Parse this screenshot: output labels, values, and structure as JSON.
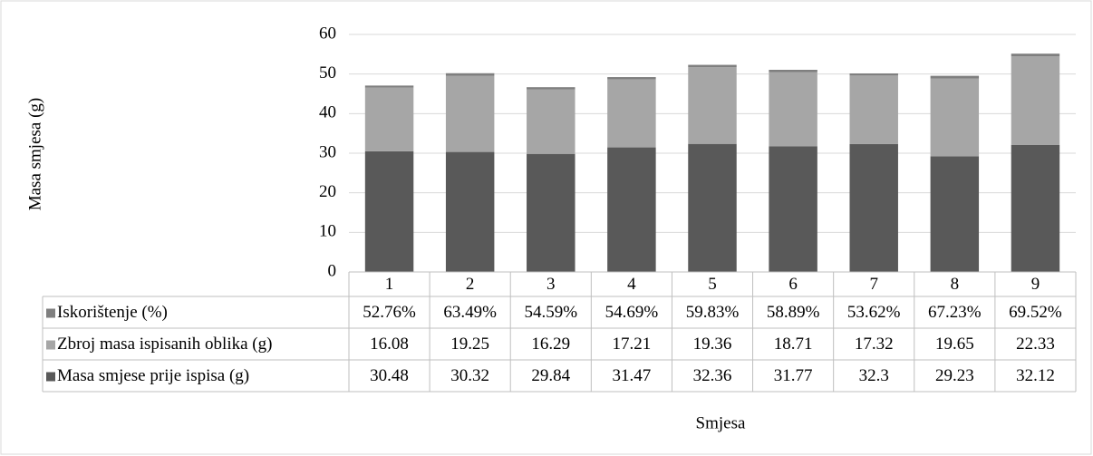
{
  "chart_data": {
    "type": "bar",
    "stacked": true,
    "y_label": "Masa smjesa (g)",
    "x_label": "Smjesa",
    "categories": [
      "1",
      "2",
      "3",
      "4",
      "5",
      "6",
      "7",
      "8",
      "9"
    ],
    "series": [
      {
        "name": "Masa smjese prije ispisa (g)",
        "color": "#595959",
        "values": [
          30.48,
          30.32,
          29.84,
          31.47,
          32.36,
          31.77,
          32.3,
          29.23,
          32.12
        ]
      },
      {
        "name": "Zbroj masa ispisanih oblika (g)",
        "color": "#a6a6a6",
        "values": [
          16.08,
          19.25,
          16.29,
          17.21,
          19.36,
          18.71,
          17.32,
          19.65,
          22.33
        ]
      },
      {
        "name": "Iskorištenje (%)",
        "color": "#7f7f7f",
        "values": [
          0.5276,
          0.6349,
          0.5459,
          0.5469,
          0.5983,
          0.5889,
          0.5362,
          0.6723,
          0.6952
        ],
        "value_labels": [
          "52.76%",
          "63.49%",
          "54.59%",
          "54.69%",
          "59.83%",
          "58.89%",
          "53.62%",
          "67.23%",
          "69.52%"
        ]
      }
    ],
    "ylim": [
      0,
      60
    ],
    "yticks": [
      0,
      10,
      20,
      30,
      40,
      50,
      60
    ],
    "grid": true
  }
}
